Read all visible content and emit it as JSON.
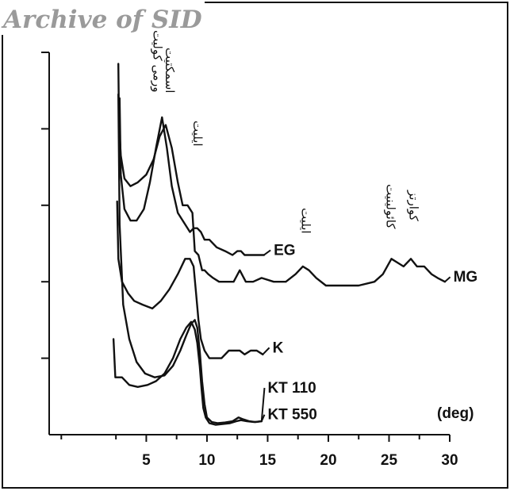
{
  "watermark": "Archive of SID",
  "chart_data": {
    "type": "line",
    "title": "",
    "xlabel": "(deg)",
    "ylabel": "",
    "xlim": [
      -3,
      30
    ],
    "ylim": [
      0,
      10
    ],
    "x_ticks": [
      5,
      10,
      15,
      20,
      25,
      30
    ],
    "y_ticks": [
      2,
      4,
      6,
      8,
      10
    ],
    "legend": "labels at curve ends",
    "peak_labels": [
      {
        "text": "ورمی کولیت",
        "x": 5.6
      },
      {
        "text": "اسمکتیت",
        "x": 6.6
      },
      {
        "text": "ایلیت",
        "x": 8.9
      },
      {
        "text": "ایلیت",
        "x": 17.8
      },
      {
        "text": "کائولینیت",
        "x": 24.8
      },
      {
        "text": "کوارتز",
        "x": 26.7
      }
    ],
    "series": [
      {
        "name": "MG",
        "label_x": 30.3,
        "label_y": 4.0,
        "x": [
          2.7,
          2.75,
          2.9,
          3.2,
          3.7,
          4.3,
          5.0,
          5.6,
          6.1,
          6.6,
          7.1,
          7.6,
          8.0,
          8.4,
          8.8,
          9.0,
          9.3,
          9.6,
          9.8,
          10.1,
          10.5,
          11.0,
          11.6,
          12.2,
          12.7,
          13.2,
          13.8,
          14.5,
          15.5,
          16.5,
          17.3,
          17.9,
          18.4,
          19.0,
          19.8,
          21.0,
          22.5,
          23.8,
          24.5,
          25.2,
          25.7,
          26.2,
          26.8,
          27.3,
          27.9,
          28.5,
          29.0,
          29.6
        ],
        "y": [
          9.7,
          8.2,
          7.3,
          6.7,
          6.5,
          6.6,
          6.8,
          7.2,
          7.8,
          8.1,
          7.5,
          6.6,
          6.0,
          6.0,
          5.8,
          4.8,
          4.7,
          4.3,
          4.3,
          4.2,
          4.1,
          4.0,
          4.0,
          4.0,
          4.3,
          4.0,
          4.0,
          4.1,
          4.0,
          4.0,
          4.2,
          4.4,
          4.3,
          4.1,
          3.9,
          3.9,
          3.9,
          4.0,
          4.2,
          4.6,
          4.5,
          4.4,
          4.6,
          4.4,
          4.4,
          4.2,
          4.1,
          4.0
        ]
      },
      {
        "name": "EG",
        "label_x": 15.5,
        "label_y": 4.7,
        "x": [
          2.8,
          2.9,
          3.2,
          3.7,
          4.2,
          4.8,
          5.3,
          5.8,
          6.3,
          6.7,
          7.1,
          7.6,
          8.2,
          8.6,
          8.9,
          9.2,
          9.5,
          9.8,
          10.2,
          10.8,
          11.5,
          12.1,
          12.5,
          12.8,
          13.1,
          13.5,
          14.0,
          14.7
        ],
        "y": [
          8.8,
          6.8,
          5.9,
          5.6,
          5.6,
          5.9,
          6.6,
          7.5,
          8.3,
          7.5,
          6.5,
          5.8,
          5.5,
          5.3,
          5.4,
          5.4,
          5.3,
          5.1,
          5.1,
          4.9,
          4.8,
          4.7,
          4.8,
          4.8,
          4.7,
          4.7,
          4.7,
          4.7
        ]
      },
      {
        "name": "K",
        "label_x": 15.4,
        "label_y": 2.15,
        "x": [
          2.6,
          2.7,
          3.0,
          3.5,
          4.0,
          4.7,
          5.5,
          6.2,
          6.9,
          7.6,
          8.2,
          8.6,
          8.9,
          9.1,
          9.3,
          9.5,
          9.8,
          10.2,
          10.7,
          11.2,
          11.8,
          12.3,
          12.7,
          13.1,
          13.6,
          14.1,
          14.6
        ],
        "y": [
          6.1,
          4.6,
          4.0,
          3.7,
          3.5,
          3.4,
          3.3,
          3.5,
          3.8,
          4.2,
          4.6,
          4.6,
          4.4,
          3.7,
          3.0,
          2.5,
          2.2,
          2.0,
          2.0,
          2.0,
          2.2,
          2.2,
          2.2,
          2.1,
          2.2,
          2.2,
          2.1
        ]
      },
      {
        "name": "KT 110",
        "label_x": 15.0,
        "label_y": 1.1,
        "x": [
          2.3,
          2.45,
          3.0,
          3.6,
          4.3,
          5.1,
          5.8,
          6.5,
          7.2,
          7.8,
          8.3,
          8.7,
          9.0,
          9.2,
          9.4,
          9.55,
          9.7,
          9.9,
          10.2,
          10.7,
          11.3,
          11.9,
          12.4,
          12.8,
          13.3,
          13.9,
          14.5
        ],
        "y": [
          2.5,
          1.5,
          1.5,
          1.3,
          1.25,
          1.3,
          1.4,
          1.6,
          2.0,
          2.5,
          2.8,
          2.95,
          2.75,
          2.4,
          1.8,
          1.2,
          0.7,
          0.45,
          0.3,
          0.26,
          0.28,
          0.3,
          0.35,
          0.38,
          0.35,
          0.33,
          0.35
        ]
      },
      {
        "name": "KT 550",
        "label_x": 15.0,
        "label_y": 0.4,
        "x": [
          2.7,
          2.8,
          3.1,
          3.6,
          4.2,
          4.9,
          5.7,
          6.5,
          7.2,
          7.8,
          8.3,
          8.7,
          9.0,
          9.2,
          9.4,
          9.6,
          9.8,
          10.0,
          10.4,
          10.9,
          11.5,
          12.1,
          12.6,
          13.0,
          13.5,
          14.0,
          14.5
        ],
        "y": [
          8.9,
          5.5,
          3.4,
          2.5,
          1.9,
          1.6,
          1.5,
          1.55,
          1.8,
          2.2,
          2.6,
          2.9,
          3.0,
          2.8,
          2.2,
          1.4,
          0.8,
          0.45,
          0.33,
          0.3,
          0.32,
          0.35,
          0.45,
          0.4,
          0.35,
          0.33,
          0.35
        ]
      }
    ]
  }
}
